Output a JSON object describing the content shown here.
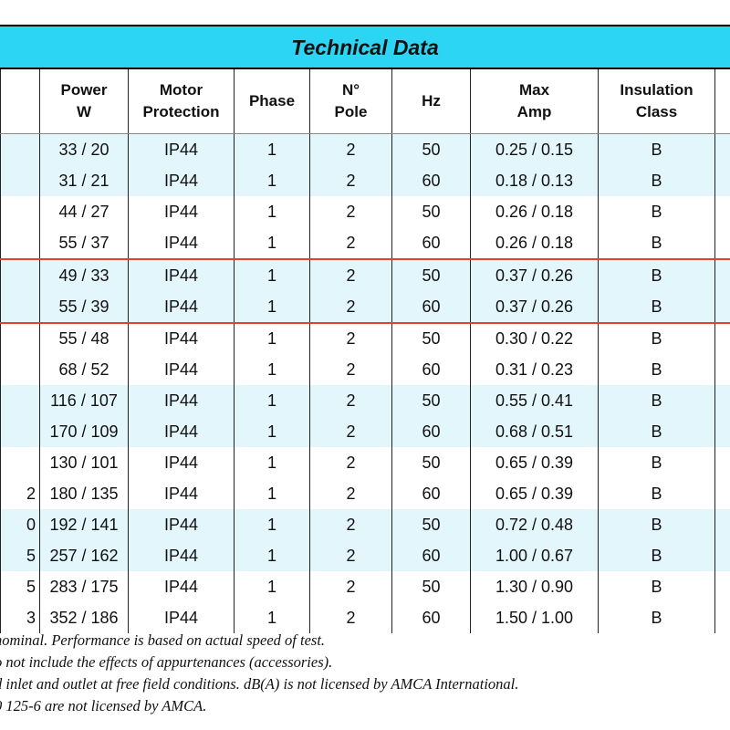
{
  "title": "Technical Data",
  "columns": [
    {
      "key": "first",
      "label": ""
    },
    {
      "key": "power",
      "label": "Power\nW"
    },
    {
      "key": "protection",
      "label": "Motor\nProtection"
    },
    {
      "key": "phase",
      "label": "Phase"
    },
    {
      "key": "pole",
      "label": "N°\nPole"
    },
    {
      "key": "hz",
      "label": "Hz"
    },
    {
      "key": "amp",
      "label": "Max\nAmp"
    },
    {
      "key": "insulation",
      "label": "Insulation\nClass"
    },
    {
      "key": "last",
      "label": ""
    }
  ],
  "rows": [
    {
      "first": "",
      "power": "33 / 20",
      "protection": "IP44",
      "phase": "1",
      "pole": "2",
      "hz": "50",
      "amp": "0.25 / 0.15",
      "insulation": "B",
      "shade": true
    },
    {
      "first": "",
      "power": "31 / 21",
      "protection": "IP44",
      "phase": "1",
      "pole": "2",
      "hz": "60",
      "amp": "0.18 / 0.13",
      "insulation": "B",
      "shade": true
    },
    {
      "first": "",
      "power": "44 / 27",
      "protection": "IP44",
      "phase": "1",
      "pole": "2",
      "hz": "50",
      "amp": "0.26 / 0.18",
      "insulation": "B",
      "shade": false
    },
    {
      "first": "",
      "power": "55 / 37",
      "protection": "IP44",
      "phase": "1",
      "pole": "2",
      "hz": "60",
      "amp": "0.26 / 0.18",
      "insulation": "B",
      "shade": false
    },
    {
      "first": "",
      "power": "49 / 33",
      "protection": "IP44",
      "phase": "1",
      "pole": "2",
      "hz": "50",
      "amp": "0.37 / 0.26",
      "insulation": "B",
      "shade": true,
      "highlight": "top"
    },
    {
      "first": "",
      "power": "55 / 39",
      "protection": "IP44",
      "phase": "1",
      "pole": "2",
      "hz": "60",
      "amp": "0.37 / 0.26",
      "insulation": "B",
      "shade": true,
      "highlight": "bottom"
    },
    {
      "first": "",
      "power": "55 / 48",
      "protection": "IP44",
      "phase": "1",
      "pole": "2",
      "hz": "50",
      "amp": "0.30 / 0.22",
      "insulation": "B",
      "shade": false
    },
    {
      "first": "",
      "power": "68 / 52",
      "protection": "IP44",
      "phase": "1",
      "pole": "2",
      "hz": "60",
      "amp": "0.31 / 0.23",
      "insulation": "B",
      "shade": false
    },
    {
      "first": "",
      "power": "116 / 107",
      "protection": "IP44",
      "phase": "1",
      "pole": "2",
      "hz": "50",
      "amp": "0.55 / 0.41",
      "insulation": "B",
      "shade": true
    },
    {
      "first": "",
      "power": "170 / 109",
      "protection": "IP44",
      "phase": "1",
      "pole": "2",
      "hz": "60",
      "amp": "0.68 / 0.51",
      "insulation": "B",
      "shade": true
    },
    {
      "first": "",
      "power": "130 / 101",
      "protection": "IP44",
      "phase": "1",
      "pole": "2",
      "hz": "50",
      "amp": "0.65 / 0.39",
      "insulation": "B",
      "shade": false
    },
    {
      "first": "2",
      "power": "180 / 135",
      "protection": "IP44",
      "phase": "1",
      "pole": "2",
      "hz": "60",
      "amp": "0.65 / 0.39",
      "insulation": "B",
      "shade": false
    },
    {
      "first": "0",
      "power": "192 / 141",
      "protection": "IP44",
      "phase": "1",
      "pole": "2",
      "hz": "50",
      "amp": "0.72 / 0.48",
      "insulation": "B",
      "shade": true
    },
    {
      "first": "5",
      "power": "257 / 162",
      "protection": "IP44",
      "phase": "1",
      "pole": "2",
      "hz": "60",
      "amp": "1.00 / 0.67",
      "insulation": "B",
      "shade": true
    },
    {
      "first": "5",
      "power": "283 / 175",
      "protection": "IP44",
      "phase": "1",
      "pole": "2",
      "hz": "50",
      "amp": "1.30 / 0.90",
      "insulation": "B",
      "shade": false
    },
    {
      "first": "3",
      "power": "352 / 186",
      "protection": "IP44",
      "phase": "1",
      "pole": "2",
      "hz": "60",
      "amp": "1.50 / 1.00",
      "insulation": "B",
      "shade": false
    }
  ],
  "footnotes": [
    "nominal. Performance is based on actual speed of test.",
    "o not include the effects of appurtenances (accessories).",
    "d  inlet and outlet at free field conditions. dB(A) is not licensed by AMCA International.",
    "0 125-6 are not licensed by AMCA."
  ],
  "colors": {
    "title_bar": "#2dd5f5",
    "row_shade": "#e3f6fc",
    "highlight_border": "#e4432a"
  }
}
